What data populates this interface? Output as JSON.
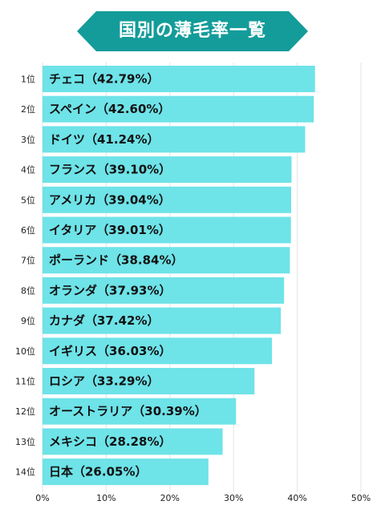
{
  "title": "国別の薄毛率一覧",
  "colors": {
    "banner": "#139c9a",
    "bar": "#6ee3e8",
    "grid": "#e3e3e3"
  },
  "chart_data": {
    "type": "bar",
    "orientation": "horizontal",
    "title": "国別の薄毛率一覧",
    "xlim": [
      0,
      50
    ],
    "x_ticks": [
      "0%",
      "10%",
      "20%",
      "30%",
      "40%",
      "50%"
    ],
    "grid": true,
    "categories": [
      "1位",
      "2位",
      "3位",
      "4位",
      "5位",
      "6位",
      "7位",
      "8位",
      "9位",
      "10位",
      "11位",
      "12位",
      "13位",
      "14位"
    ],
    "bar_labels": [
      "チェコ（42.79%）",
      "スペイン（42.60%）",
      "ドイツ（41.24%）",
      "フランス（39.10%）",
      "アメリカ（39.04%）",
      "イタリア（39.01%）",
      "ポーランド（38.84%）",
      "オランダ（37.93%）",
      "カナダ（37.42%）",
      "イギリス（36.03%）",
      "ロシア（33.29%）",
      "オーストラリア（30.39%）",
      "メキシコ（28.28%）",
      "日本（26.05%）"
    ],
    "values": [
      42.79,
      42.6,
      41.24,
      39.1,
      39.04,
      39.01,
      38.84,
      37.93,
      37.42,
      36.03,
      33.29,
      30.39,
      28.28,
      26.05
    ]
  }
}
